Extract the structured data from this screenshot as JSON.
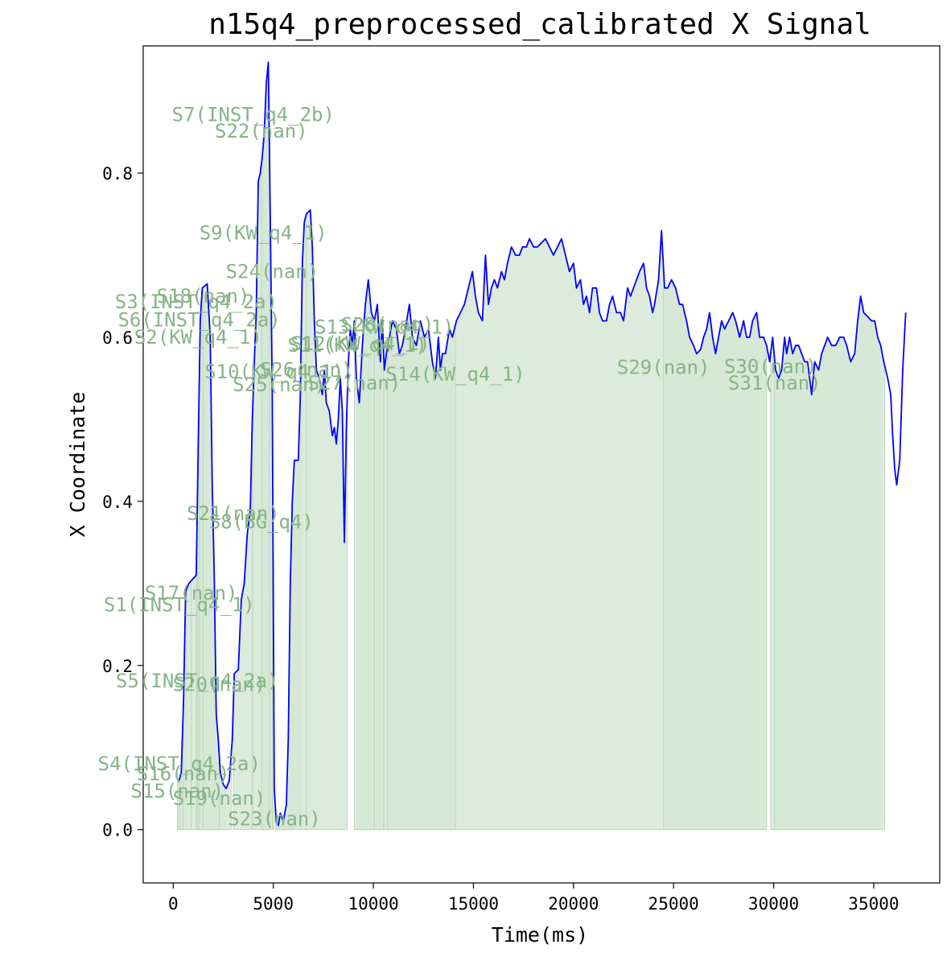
{
  "chart_data": {
    "type": "line",
    "title": "n15q4_preprocessed_calibrated X Signal",
    "xlabel": "Time(ms)",
    "ylabel": "X Coordinate",
    "xlim": [
      -1500,
      38300
    ],
    "ylim": [
      -0.065,
      0.955
    ],
    "x_ticks": [
      0,
      5000,
      10000,
      15000,
      20000,
      25000,
      30000,
      35000
    ],
    "y_ticks": [
      0.0,
      0.2,
      0.4,
      0.6,
      0.8
    ],
    "x_tick_labels": [
      "0",
      "5000",
      "10000",
      "15000",
      "20000",
      "25000",
      "30000",
      "35000"
    ],
    "y_tick_labels": [
      "0.0",
      "0.2",
      "0.4",
      "0.6",
      "0.8"
    ],
    "grid": false,
    "line_color": "#0000ff",
    "fill_color": "#d6e7d6",
    "fill_edge_color": "#b9d4b9",
    "label_color": "#87b487",
    "series": [
      {
        "points": [
          [
            300,
            0.06
          ],
          [
            400,
            0.07
          ],
          [
            520,
            0.16
          ],
          [
            620,
            0.29
          ],
          [
            780,
            0.3
          ],
          [
            1150,
            0.31
          ],
          [
            1250,
            0.47
          ],
          [
            1350,
            0.62
          ],
          [
            1450,
            0.66
          ],
          [
            1700,
            0.665
          ],
          [
            1850,
            0.6
          ],
          [
            1950,
            0.42
          ],
          [
            2050,
            0.31
          ],
          [
            2150,
            0.14
          ],
          [
            2250,
            0.11
          ],
          [
            2350,
            0.07
          ],
          [
            2500,
            0.055
          ],
          [
            2650,
            0.05
          ],
          [
            2800,
            0.06
          ],
          [
            2950,
            0.11
          ],
          [
            3050,
            0.19
          ],
          [
            3250,
            0.195
          ],
          [
            3400,
            0.28
          ],
          [
            3550,
            0.3
          ],
          [
            3700,
            0.36
          ],
          [
            3850,
            0.39
          ],
          [
            3950,
            0.5
          ],
          [
            4050,
            0.57
          ],
          [
            4150,
            0.63
          ],
          [
            4250,
            0.79
          ],
          [
            4350,
            0.8
          ],
          [
            4450,
            0.82
          ],
          [
            4550,
            0.85
          ],
          [
            4650,
            0.91
          ],
          [
            4750,
            0.935
          ],
          [
            4850,
            0.74
          ],
          [
            4950,
            0.53
          ],
          [
            5050,
            0.05
          ],
          [
            5150,
            0.01
          ],
          [
            5250,
            0.005
          ],
          [
            5350,
            0.02
          ],
          [
            5500,
            0.01
          ],
          [
            5650,
            0.03
          ],
          [
            5750,
            0.11
          ],
          [
            5850,
            0.3
          ],
          [
            5950,
            0.4
          ],
          [
            6050,
            0.45
          ],
          [
            6250,
            0.45
          ],
          [
            6350,
            0.53
          ],
          [
            6450,
            0.69
          ],
          [
            6550,
            0.74
          ],
          [
            6650,
            0.75
          ],
          [
            6850,
            0.755
          ],
          [
            6950,
            0.71
          ],
          [
            7050,
            0.62
          ],
          [
            7150,
            0.56
          ],
          [
            7300,
            0.55
          ],
          [
            7450,
            0.53
          ],
          [
            7550,
            0.56
          ],
          [
            7650,
            0.52
          ],
          [
            7800,
            0.51
          ],
          [
            7950,
            0.48
          ],
          [
            8050,
            0.49
          ],
          [
            8150,
            0.47
          ],
          [
            8250,
            0.5
          ],
          [
            8350,
            0.55
          ],
          [
            8450,
            0.51
          ],
          [
            8550,
            0.35
          ],
          [
            8650,
            0.49
          ],
          [
            8750,
            0.57
          ],
          [
            8850,
            0.61
          ],
          [
            8950,
            0.59
          ],
          [
            9050,
            0.62
          ],
          [
            9150,
            0.55
          ],
          [
            9300,
            0.52
          ],
          [
            9450,
            0.59
          ],
          [
            9600,
            0.64
          ],
          [
            9750,
            0.67
          ],
          [
            9900,
            0.63
          ],
          [
            10050,
            0.62
          ],
          [
            10200,
            0.64
          ],
          [
            10350,
            0.57
          ],
          [
            10450,
            0.62
          ],
          [
            10550,
            0.56
          ],
          [
            10650,
            0.58
          ],
          [
            10800,
            0.6
          ],
          [
            10950,
            0.62
          ],
          [
            11150,
            0.61
          ],
          [
            11300,
            0.58
          ],
          [
            11450,
            0.59
          ],
          [
            11600,
            0.61
          ],
          [
            11800,
            0.64
          ],
          [
            11950,
            0.6
          ],
          [
            12150,
            0.59
          ],
          [
            12350,
            0.62
          ],
          [
            12550,
            0.6
          ],
          [
            12750,
            0.61
          ],
          [
            12950,
            0.57
          ],
          [
            13100,
            0.55
          ],
          [
            13250,
            0.6
          ],
          [
            13350,
            0.56
          ],
          [
            13450,
            0.58
          ],
          [
            13600,
            0.58
          ],
          [
            13800,
            0.61
          ],
          [
            13950,
            0.6
          ],
          [
            14150,
            0.62
          ],
          [
            14350,
            0.63
          ],
          [
            14550,
            0.64
          ],
          [
            14750,
            0.66
          ],
          [
            14950,
            0.68
          ],
          [
            15100,
            0.65
          ],
          [
            15250,
            0.63
          ],
          [
            15450,
            0.62
          ],
          [
            15600,
            0.7
          ],
          [
            15750,
            0.64
          ],
          [
            15900,
            0.66
          ],
          [
            16050,
            0.67
          ],
          [
            16200,
            0.66
          ],
          [
            16400,
            0.68
          ],
          [
            16550,
            0.67
          ],
          [
            16700,
            0.69
          ],
          [
            16900,
            0.71
          ],
          [
            17100,
            0.7
          ],
          [
            17300,
            0.7
          ],
          [
            17450,
            0.71
          ],
          [
            17650,
            0.71
          ],
          [
            17800,
            0.72
          ],
          [
            18000,
            0.71
          ],
          [
            18200,
            0.71
          ],
          [
            18400,
            0.715
          ],
          [
            18600,
            0.72
          ],
          [
            18800,
            0.71
          ],
          [
            19000,
            0.7
          ],
          [
            19200,
            0.71
          ],
          [
            19400,
            0.72
          ],
          [
            19600,
            0.7
          ],
          [
            19800,
            0.68
          ],
          [
            20000,
            0.69
          ],
          [
            20150,
            0.66
          ],
          [
            20350,
            0.67
          ],
          [
            20500,
            0.64
          ],
          [
            20650,
            0.65
          ],
          [
            20800,
            0.63
          ],
          [
            20950,
            0.66
          ],
          [
            21150,
            0.66
          ],
          [
            21300,
            0.63
          ],
          [
            21450,
            0.62
          ],
          [
            21650,
            0.62
          ],
          [
            21800,
            0.64
          ],
          [
            21950,
            0.65
          ],
          [
            22150,
            0.63
          ],
          [
            22350,
            0.63
          ],
          [
            22500,
            0.62
          ],
          [
            22700,
            0.66
          ],
          [
            22850,
            0.65
          ],
          [
            23000,
            0.66
          ],
          [
            23150,
            0.67
          ],
          [
            23300,
            0.68
          ],
          [
            23500,
            0.69
          ],
          [
            23650,
            0.66
          ],
          [
            23800,
            0.65
          ],
          [
            23950,
            0.63
          ],
          [
            24050,
            0.64
          ],
          [
            24250,
            0.67
          ],
          [
            24400,
            0.73
          ],
          [
            24550,
            0.66
          ],
          [
            24700,
            0.66
          ],
          [
            24900,
            0.67
          ],
          [
            25100,
            0.66
          ],
          [
            25300,
            0.64
          ],
          [
            25450,
            0.64
          ],
          [
            25650,
            0.62
          ],
          [
            25800,
            0.6
          ],
          [
            26000,
            0.59
          ],
          [
            26150,
            0.58
          ],
          [
            26350,
            0.585
          ],
          [
            26500,
            0.6
          ],
          [
            26650,
            0.61
          ],
          [
            26800,
            0.63
          ],
          [
            26950,
            0.6
          ],
          [
            27100,
            0.58
          ],
          [
            27250,
            0.6
          ],
          [
            27400,
            0.62
          ],
          [
            27550,
            0.61
          ],
          [
            27750,
            0.62
          ],
          [
            27950,
            0.63
          ],
          [
            28100,
            0.62
          ],
          [
            28300,
            0.6
          ],
          [
            28500,
            0.62
          ],
          [
            28650,
            0.6
          ],
          [
            28800,
            0.6
          ],
          [
            28950,
            0.62
          ],
          [
            29150,
            0.63
          ],
          [
            29300,
            0.6
          ],
          [
            29500,
            0.6
          ],
          [
            29650,
            0.59
          ],
          [
            29800,
            0.57
          ],
          [
            29950,
            0.6
          ],
          [
            30100,
            0.56
          ],
          [
            30250,
            0.55
          ],
          [
            30400,
            0.56
          ],
          [
            30550,
            0.6
          ],
          [
            30650,
            0.58
          ],
          [
            30800,
            0.6
          ],
          [
            30950,
            0.58
          ],
          [
            31100,
            0.59
          ],
          [
            31250,
            0.59
          ],
          [
            31400,
            0.58
          ],
          [
            31550,
            0.57
          ],
          [
            31700,
            0.57
          ],
          [
            31900,
            0.53
          ],
          [
            32050,
            0.57
          ],
          [
            32250,
            0.56
          ],
          [
            32400,
            0.58
          ],
          [
            32550,
            0.59
          ],
          [
            32700,
            0.6
          ],
          [
            32900,
            0.59
          ],
          [
            33100,
            0.59
          ],
          [
            33300,
            0.6
          ],
          [
            33500,
            0.6
          ],
          [
            33650,
            0.59
          ],
          [
            33850,
            0.57
          ],
          [
            34050,
            0.58
          ],
          [
            34200,
            0.62
          ],
          [
            34350,
            0.65
          ],
          [
            34500,
            0.63
          ],
          [
            34700,
            0.625
          ],
          [
            34900,
            0.62
          ],
          [
            35050,
            0.62
          ],
          [
            35200,
            0.6
          ],
          [
            35350,
            0.59
          ],
          [
            35500,
            0.57
          ],
          [
            35700,
            0.55
          ],
          [
            35850,
            0.53
          ],
          [
            35950,
            0.48
          ],
          [
            36050,
            0.44
          ],
          [
            36150,
            0.42
          ],
          [
            36300,
            0.45
          ],
          [
            36450,
            0.56
          ],
          [
            36600,
            0.63
          ]
        ]
      }
    ],
    "segments": [
      {
        "label": "S1(INST_q4_1)",
        "start": 300,
        "end": 600,
        "label_y": 0.274
      },
      {
        "label": "S2(KW_q4_1)",
        "start": 1250,
        "end": 2100,
        "label_y": 0.6
      },
      {
        "label": "S3(INST_q4_2a)",
        "start": 1150,
        "end": 1950,
        "label_y": 0.643
      },
      {
        "label": "S4(INST_q4_2a)",
        "start": 300,
        "end": 700,
        "label_y": 0.08
      },
      {
        "label": "S5(INST_q4_2a)",
        "start": 1200,
        "end": 2300,
        "label_y": 0.181
      },
      {
        "label": "S6(INST_q4_2a)",
        "start": 1300,
        "end": 2050,
        "label_y": 0.621
      },
      {
        "label": "S7(INST_q4_2b)",
        "start": 4000,
        "end": 4850,
        "label_y": 0.871
      },
      {
        "label": "S8(BG_q4)",
        "start": 4400,
        "end": 4650,
        "label_y": 0.375
      },
      {
        "label": "S9(KW_q4_1)",
        "start": 4500,
        "end": 5000,
        "label_y": 0.727
      },
      {
        "label": "S10(KW_q4_1)",
        "start": 5050,
        "end": 6450,
        "label_y": 0.558
      },
      {
        "label": "S11(KW_q4_1)",
        "start": 9200,
        "end": 10400,
        "label_y": 0.59
      },
      {
        "label": "S12(KW_q4_1)",
        "start": 9350,
        "end": 10500,
        "label_y": 0.592
      },
      {
        "label": "S13(KW_q4_1)",
        "start": 10550,
        "end": 14000,
        "label_y": 0.612
      },
      {
        "label": "S14(KW_q4_1)",
        "start": 14100,
        "end": 29650,
        "label_y": 0.555
      },
      {
        "label": "S15(nan)",
        "start": 200,
        "end": 320,
        "label_y": 0.047
      },
      {
        "label": "S16(nan)",
        "start": 500,
        "end": 900,
        "label_y": 0.068
      },
      {
        "label": "S17(nan)",
        "start": 900,
        "end": 1150,
        "label_y": 0.288
      },
      {
        "label": "S18(nan)",
        "start": 1500,
        "end": 2300,
        "label_y": 0.65
      },
      {
        "label": "S19(nan)",
        "start": 2300,
        "end": 2600,
        "label_y": 0.038
      },
      {
        "label": "S20(nan)",
        "start": 2300,
        "end": 2900,
        "label_y": 0.177
      },
      {
        "label": "S21(nan)",
        "start": 3000,
        "end": 3950,
        "label_y": 0.385
      },
      {
        "label": "S22(nan)",
        "start": 4400,
        "end": 4800,
        "label_y": 0.851
      },
      {
        "label": "S23(nan)",
        "start": 5050,
        "end": 5450,
        "label_y": 0.013
      },
      {
        "label": "S24(nan)",
        "start": 4950,
        "end": 6000,
        "label_y": 0.68
      },
      {
        "label": "S25(nan)",
        "start": 5300,
        "end": 6650,
        "label_y": 0.542
      },
      {
        "label": "S26(nan)",
        "start": 6650,
        "end": 8700,
        "label_y": 0.56
      },
      {
        "label": "S27(nan)",
        "start": 9050,
        "end": 10050,
        "label_y": 0.544
      },
      {
        "label": "S28(nan)",
        "start": 10700,
        "end": 14100,
        "label_y": 0.615
      },
      {
        "label": "S29(nan)",
        "start": 24500,
        "end": 29650,
        "label_y": 0.563
      },
      {
        "label": "S30(nan)",
        "start": 29850,
        "end": 35300,
        "label_y": 0.564
      },
      {
        "label": "S31(nan)",
        "start": 30050,
        "end": 35550,
        "label_y": 0.544
      }
    ]
  }
}
